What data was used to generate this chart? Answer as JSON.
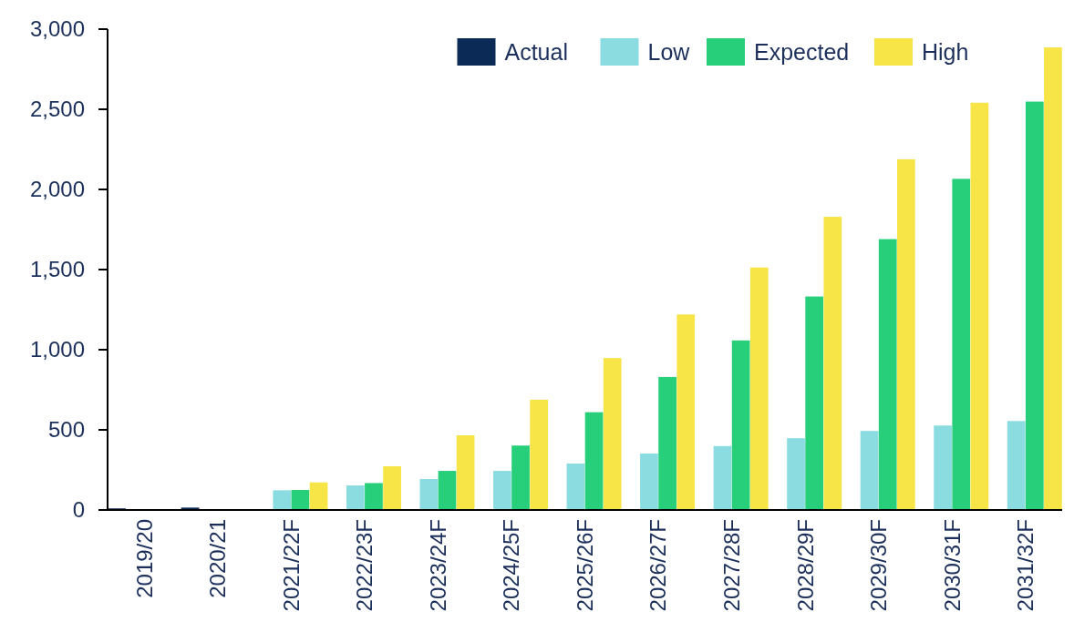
{
  "chart_data": {
    "type": "bar",
    "categories": [
      "2019/20",
      "2020/21",
      "2021/22F",
      "2022/23F",
      "2023/24F",
      "2024/25F",
      "2025/26F",
      "2026/27F",
      "2027/28F",
      "2028/29F",
      "2029/30F",
      "2030/31F",
      "2031/32F"
    ],
    "series": [
      {
        "name": "Actual",
        "color": "#0b2a55",
        "values": [
          10,
          15,
          null,
          null,
          null,
          null,
          null,
          null,
          null,
          null,
          null,
          null,
          null
        ]
      },
      {
        "name": "Low",
        "color": "#8adce0",
        "values": [
          null,
          null,
          123,
          153,
          193,
          244,
          290,
          352,
          399,
          448,
          493,
          527,
          555
        ]
      },
      {
        "name": "Expected",
        "color": "#27cf7a",
        "values": [
          null,
          null,
          125,
          168,
          244,
          402,
          610,
          830,
          1058,
          1332,
          1690,
          2066,
          2548
        ]
      },
      {
        "name": "High",
        "color": "#f7e547",
        "values": [
          null,
          null,
          172,
          273,
          466,
          688,
          948,
          1220,
          1513,
          1829,
          2188,
          2541,
          2886
        ]
      }
    ],
    "ylim": [
      0,
      3000
    ],
    "yticks": [
      {
        "value": 0,
        "label": "0"
      },
      {
        "value": 500,
        "label": "500"
      },
      {
        "value": 1000,
        "label": "1,000"
      },
      {
        "value": 1500,
        "label": "1,500"
      },
      {
        "value": 2000,
        "label": "2,000"
      },
      {
        "value": 2500,
        "label": "2,500"
      },
      {
        "value": 3000,
        "label": "3,000"
      }
    ],
    "grid": false,
    "legend": "top right"
  }
}
